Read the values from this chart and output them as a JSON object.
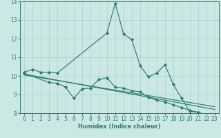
{
  "xlabel": "Humidex (Indice chaleur)",
  "ylabel": "",
  "xlim": [
    -0.5,
    23.5
  ],
  "ylim": [
    8,
    14
  ],
  "yticks": [
    8,
    9,
    10,
    11,
    12,
    13,
    14
  ],
  "xticks": [
    0,
    1,
    2,
    3,
    4,
    5,
    6,
    7,
    8,
    9,
    10,
    11,
    12,
    13,
    14,
    15,
    16,
    17,
    18,
    19,
    20,
    21,
    22,
    23
  ],
  "bg_color": "#cce8e4",
  "line_color": "#2e7d6e",
  "grid_color": "#aacfcb",
  "line1_x": [
    0,
    1,
    2,
    3,
    4,
    10,
    11,
    12,
    13,
    14,
    15,
    16,
    17,
    18,
    19,
    20,
    21,
    22,
    23
  ],
  "line1_y": [
    10.2,
    10.35,
    10.2,
    10.2,
    10.15,
    12.3,
    13.9,
    12.25,
    11.95,
    10.55,
    9.95,
    10.15,
    10.6,
    9.55,
    8.8,
    8.1,
    8.05,
    7.85,
    7.65
  ],
  "line2_x": [
    0,
    3,
    4,
    5,
    6,
    7,
    8,
    9,
    10,
    11,
    12,
    13,
    14,
    15,
    16,
    17,
    18,
    19,
    20,
    21,
    22,
    23
  ],
  "line2_y": [
    10.15,
    9.65,
    9.6,
    9.4,
    8.8,
    9.3,
    9.35,
    9.8,
    9.9,
    9.4,
    9.35,
    9.2,
    9.15,
    8.85,
    8.7,
    8.6,
    8.45,
    8.3,
    8.15,
    8.05,
    7.9,
    7.75
  ],
  "line3_x": [
    0,
    23
  ],
  "line3_y": [
    10.1,
    8.2
  ],
  "line4_x": [
    0,
    23
  ],
  "line4_y": [
    10.05,
    8.35
  ],
  "marker": "D",
  "markersize": 2.2,
  "linewidth": 0.85,
  "tick_fontsize": 5.5,
  "xlabel_fontsize": 6.0
}
